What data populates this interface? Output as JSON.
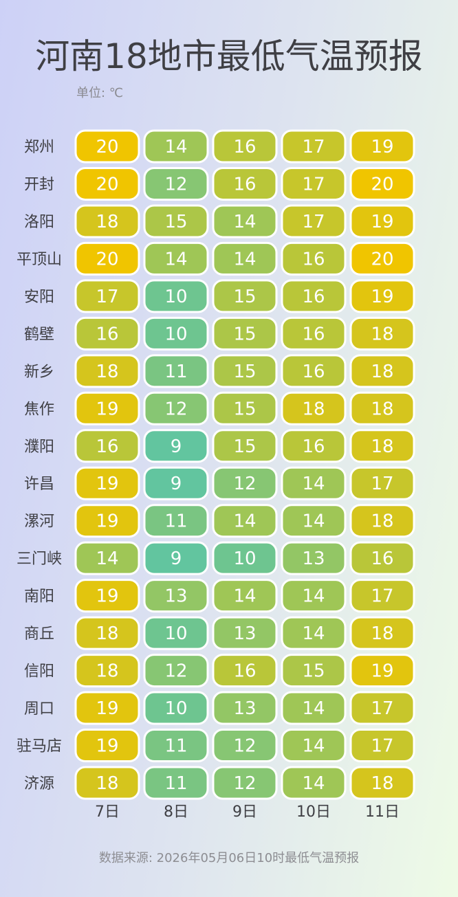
{
  "title": "河南18地市最低气温预报",
  "unit_label": "单位: ℃",
  "footer": "数据来源: 2026年05月06日10时最低气温预报",
  "colors": {
    "low": "#62c59f",
    "mid": "#a5c64f",
    "high": "#f0c500",
    "cell_border": "#ffffff",
    "label_text": "#3f3f44",
    "value_text": "#ffffff"
  },
  "chart_data": {
    "type": "heatmap",
    "title": "河南18地市最低气温预报",
    "color_range": [
      9,
      20
    ],
    "x": [
      "7日",
      "8日",
      "9日",
      "10日",
      "11日"
    ],
    "y": [
      "郑州",
      "开封",
      "洛阳",
      "平顶山",
      "安阳",
      "鹤壁",
      "新乡",
      "焦作",
      "濮阳",
      "许昌",
      "漯河",
      "三门峡",
      "南阳",
      "商丘",
      "信阳",
      "周口",
      "驻马店",
      "济源"
    ],
    "values": [
      [
        20,
        14,
        16,
        17,
        19
      ],
      [
        20,
        12,
        16,
        17,
        20
      ],
      [
        18,
        15,
        14,
        17,
        19
      ],
      [
        20,
        14,
        14,
        16,
        20
      ],
      [
        17,
        10,
        15,
        16,
        19
      ],
      [
        16,
        10,
        15,
        16,
        18
      ],
      [
        18,
        11,
        15,
        16,
        18
      ],
      [
        19,
        12,
        15,
        18,
        18
      ],
      [
        16,
        9,
        15,
        16,
        18
      ],
      [
        19,
        9,
        12,
        14,
        17
      ],
      [
        19,
        11,
        14,
        14,
        18
      ],
      [
        14,
        9,
        10,
        13,
        16
      ],
      [
        19,
        13,
        14,
        14,
        17
      ],
      [
        18,
        10,
        13,
        14,
        18
      ],
      [
        18,
        12,
        16,
        15,
        19
      ],
      [
        19,
        10,
        13,
        14,
        17
      ],
      [
        19,
        11,
        12,
        14,
        17
      ],
      [
        18,
        11,
        12,
        14,
        18
      ]
    ]
  }
}
